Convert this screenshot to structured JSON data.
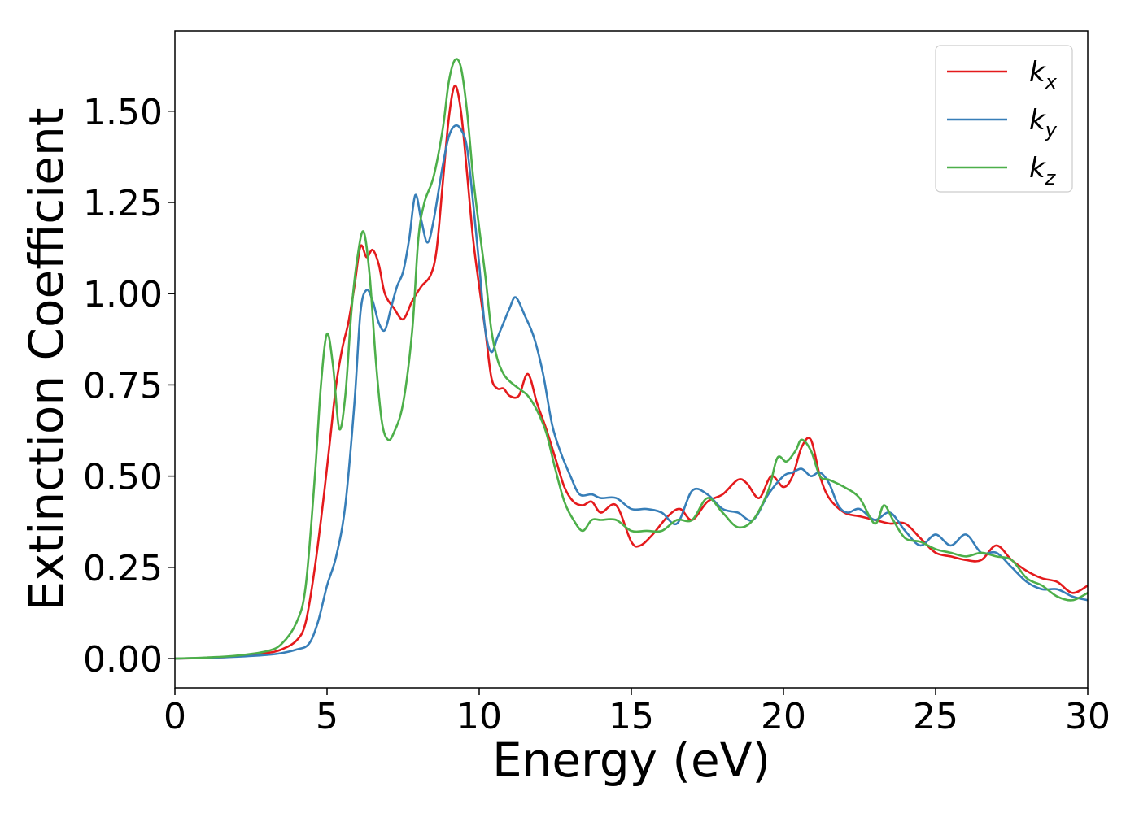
{
  "chart_data": {
    "type": "line",
    "xlabel": "Energy (eV)",
    "ylabel": "Extinction Coefficient",
    "xlim": [
      0,
      30
    ],
    "ylim": [
      -0.08,
      1.72
    ],
    "xticks": [
      0,
      5,
      10,
      15,
      20,
      25,
      30
    ],
    "xtick_labels": [
      "0",
      "5",
      "10",
      "15",
      "20",
      "25",
      "30"
    ],
    "yticks": [
      0,
      0.25,
      0.5,
      0.75,
      1.0,
      1.25,
      1.5
    ],
    "ytick_labels": [
      "0.00",
      "0.25",
      "0.50",
      "0.75",
      "1.00",
      "1.25",
      "1.50"
    ],
    "grid": false,
    "legend_position": "top-right",
    "series": [
      {
        "name": "k_x",
        "label_main": "k",
        "label_sub": "x",
        "color": "#e41a1c",
        "x": [
          0,
          1,
          2,
          3,
          3.5,
          4.0,
          4.3,
          4.6,
          4.9,
          5.1,
          5.3,
          5.5,
          5.7,
          5.9,
          6.1,
          6.3,
          6.5,
          6.7,
          6.9,
          7.2,
          7.5,
          7.8,
          8.1,
          8.4,
          8.6,
          8.8,
          9.0,
          9.2,
          9.4,
          9.6,
          9.8,
          10.0,
          10.2,
          10.4,
          10.6,
          10.8,
          11.0,
          11.3,
          11.6,
          11.9,
          12.2,
          12.5,
          12.8,
          13.1,
          13.4,
          13.7,
          14.0,
          14.5,
          15.0,
          15.3,
          15.7,
          16.2,
          16.6,
          17.0,
          17.5,
          18.0,
          18.5,
          18.8,
          19.2,
          19.6,
          20.0,
          20.3,
          20.6,
          20.9,
          21.2,
          21.5,
          22.0,
          22.5,
          23.0,
          23.5,
          24.0,
          24.5,
          25.0,
          25.5,
          26.0,
          26.5,
          27.0,
          27.5,
          28.0,
          28.5,
          29.0,
          29.5,
          30.0
        ],
        "y": [
          0,
          0.002,
          0.006,
          0.015,
          0.025,
          0.05,
          0.1,
          0.25,
          0.45,
          0.6,
          0.75,
          0.85,
          0.92,
          1.02,
          1.13,
          1.1,
          1.12,
          1.08,
          1.0,
          0.96,
          0.93,
          0.98,
          1.02,
          1.05,
          1.12,
          1.3,
          1.48,
          1.57,
          1.5,
          1.33,
          1.15,
          1.02,
          0.9,
          0.77,
          0.74,
          0.74,
          0.72,
          0.72,
          0.78,
          0.7,
          0.63,
          0.55,
          0.47,
          0.43,
          0.42,
          0.43,
          0.4,
          0.42,
          0.32,
          0.31,
          0.34,
          0.39,
          0.41,
          0.38,
          0.43,
          0.45,
          0.49,
          0.48,
          0.44,
          0.5,
          0.47,
          0.5,
          0.58,
          0.6,
          0.5,
          0.44,
          0.4,
          0.39,
          0.38,
          0.37,
          0.37,
          0.33,
          0.29,
          0.28,
          0.27,
          0.27,
          0.31,
          0.27,
          0.24,
          0.22,
          0.21,
          0.18,
          0.2
        ]
      },
      {
        "name": "k_y",
        "label_main": "k",
        "label_sub": "y",
        "color": "#377eb8",
        "x": [
          0,
          1,
          2,
          3,
          3.5,
          4.0,
          4.4,
          4.7,
          5.0,
          5.3,
          5.6,
          5.9,
          6.1,
          6.3,
          6.5,
          6.7,
          6.9,
          7.1,
          7.3,
          7.5,
          7.7,
          7.9,
          8.1,
          8.3,
          8.5,
          8.8,
          9.0,
          9.2,
          9.4,
          9.6,
          9.8,
          10.0,
          10.2,
          10.4,
          10.6,
          10.8,
          11.0,
          11.2,
          11.5,
          11.8,
          12.1,
          12.4,
          12.7,
          13.0,
          13.3,
          13.7,
          14.0,
          14.5,
          15.0,
          15.5,
          16.0,
          16.5,
          17.0,
          17.5,
          18.0,
          18.5,
          19.0,
          19.5,
          20.0,
          20.3,
          20.6,
          20.9,
          21.2,
          21.5,
          21.8,
          22.1,
          22.5,
          23.0,
          23.5,
          24.0,
          24.5,
          25.0,
          25.5,
          26.0,
          26.5,
          27.0,
          27.5,
          28.0,
          28.5,
          29.0,
          29.5,
          30.0
        ],
        "y": [
          0,
          0.002,
          0.005,
          0.01,
          0.015,
          0.025,
          0.04,
          0.1,
          0.2,
          0.28,
          0.42,
          0.7,
          0.95,
          1.01,
          0.98,
          0.92,
          0.9,
          0.96,
          1.02,
          1.06,
          1.15,
          1.27,
          1.2,
          1.14,
          1.2,
          1.35,
          1.43,
          1.46,
          1.45,
          1.4,
          1.25,
          1.08,
          0.9,
          0.84,
          0.88,
          0.92,
          0.96,
          0.99,
          0.94,
          0.88,
          0.78,
          0.64,
          0.56,
          0.5,
          0.45,
          0.45,
          0.44,
          0.44,
          0.41,
          0.41,
          0.4,
          0.37,
          0.46,
          0.45,
          0.41,
          0.4,
          0.38,
          0.45,
          0.5,
          0.51,
          0.52,
          0.5,
          0.51,
          0.48,
          0.42,
          0.4,
          0.41,
          0.38,
          0.4,
          0.35,
          0.31,
          0.34,
          0.31,
          0.34,
          0.29,
          0.29,
          0.25,
          0.21,
          0.19,
          0.19,
          0.17,
          0.16
        ]
      },
      {
        "name": "k_z",
        "label_main": "k",
        "label_sub": "z",
        "color": "#4daf4a",
        "x": [
          0,
          1,
          2,
          3,
          3.5,
          4.0,
          4.3,
          4.6,
          4.8,
          5.0,
          5.2,
          5.4,
          5.6,
          5.8,
          6.0,
          6.2,
          6.4,
          6.6,
          6.8,
          7.0,
          7.2,
          7.5,
          7.8,
          8.0,
          8.2,
          8.5,
          8.8,
          9.0,
          9.2,
          9.4,
          9.6,
          9.8,
          10.0,
          10.2,
          10.4,
          10.6,
          10.8,
          11.0,
          11.3,
          11.6,
          11.9,
          12.2,
          12.5,
          12.8,
          13.1,
          13.4,
          13.7,
          14.0,
          14.5,
          15.0,
          15.5,
          16.0,
          16.5,
          17.0,
          17.5,
          18.0,
          18.5,
          19.0,
          19.5,
          19.8,
          20.1,
          20.4,
          20.6,
          20.9,
          21.2,
          21.5,
          22.0,
          22.5,
          23.0,
          23.3,
          23.6,
          24.0,
          24.5,
          25.0,
          25.5,
          26.0,
          26.5,
          27.0,
          27.5,
          28.0,
          28.5,
          29.0,
          29.5,
          30.0
        ],
        "y": [
          0,
          0.003,
          0.008,
          0.02,
          0.04,
          0.1,
          0.2,
          0.5,
          0.75,
          0.89,
          0.8,
          0.63,
          0.72,
          0.95,
          1.1,
          1.17,
          1.05,
          0.82,
          0.65,
          0.6,
          0.62,
          0.7,
          0.9,
          1.15,
          1.25,
          1.32,
          1.45,
          1.58,
          1.64,
          1.62,
          1.5,
          1.32,
          1.18,
          1.05,
          0.9,
          0.82,
          0.78,
          0.76,
          0.74,
          0.72,
          0.68,
          0.62,
          0.52,
          0.43,
          0.38,
          0.35,
          0.38,
          0.38,
          0.38,
          0.35,
          0.35,
          0.35,
          0.38,
          0.38,
          0.44,
          0.4,
          0.36,
          0.38,
          0.46,
          0.55,
          0.54,
          0.57,
          0.6,
          0.57,
          0.5,
          0.49,
          0.47,
          0.44,
          0.37,
          0.42,
          0.38,
          0.33,
          0.32,
          0.3,
          0.29,
          0.28,
          0.29,
          0.28,
          0.27,
          0.22,
          0.2,
          0.17,
          0.16,
          0.18
        ]
      }
    ]
  }
}
